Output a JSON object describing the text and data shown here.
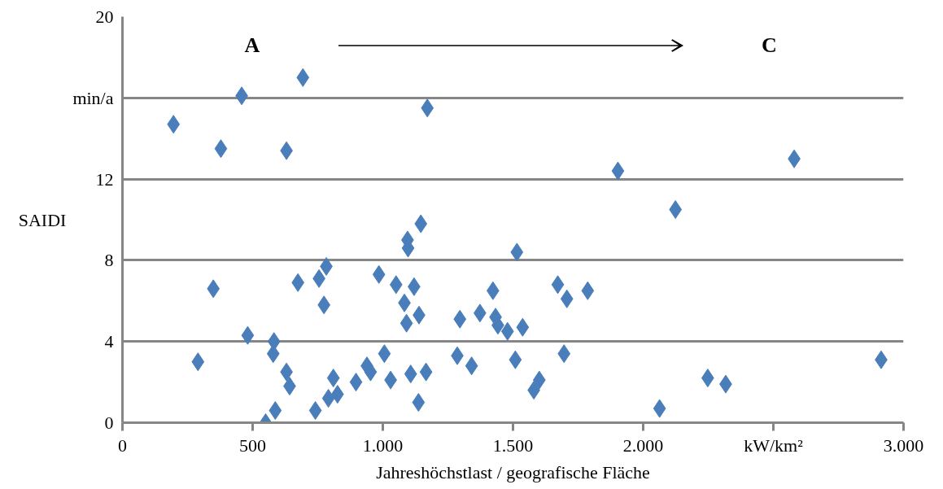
{
  "chart_data": {
    "type": "scatter",
    "xlabel": "Jahreshöchstlast / geografische Fläche",
    "ylabel": "SAIDI",
    "marker": "diamond",
    "grid": "y",
    "annotations": [
      "A",
      "C"
    ],
    "xlim": [
      0,
      3000
    ],
    "ylim": [
      0,
      20
    ],
    "xticks": [
      0,
      500,
      {
        "value": 1000,
        "label": "1.000"
      },
      {
        "value": 1500,
        "label": "1.500"
      },
      {
        "value": 2000,
        "label": "2.000"
      },
      {
        "value": 2500,
        "label": "kW/km²"
      },
      {
        "value": 3000,
        "label": "3.000"
      }
    ],
    "yticks": [
      0,
      4,
      8,
      12,
      {
        "value": 16,
        "label": "min/a"
      },
      20
    ],
    "series": [
      {
        "color": "#4a7ebb",
        "x": [
          196,
          458,
          693,
          378,
          630,
          349,
          674,
          755,
          783,
          774,
          985,
          481,
          582,
          579,
          290,
          630,
          642,
          587,
          550,
          741,
          810,
          791,
          826,
          897,
          939,
          953,
          1006,
          1171,
          1903,
          1146,
          1095,
          1097,
          1515,
          1051,
          1120,
          1083,
          1139,
          1091,
          1296,
          1423,
          1373,
          1433,
          1442,
          1479,
          1537,
          1672,
          1707,
          1787,
          1030,
          1107,
          1166,
          1137,
          1286,
          1341,
          1509,
          1696,
          1601,
          1580,
          2580,
          2124,
          2914,
          2248,
          2317,
          2063
        ],
        "values": [
          14.7,
          16.1,
          17.0,
          13.5,
          13.4,
          6.6,
          6.9,
          7.1,
          7.7,
          5.8,
          7.3,
          4.3,
          4.0,
          3.4,
          3.0,
          2.5,
          1.8,
          0.6,
          0.0,
          0.6,
          2.2,
          1.2,
          1.4,
          2.0,
          2.8,
          2.5,
          3.4,
          15.5,
          12.4,
          9.8,
          9.0,
          8.6,
          8.4,
          6.8,
          6.7,
          5.9,
          5.3,
          4.9,
          5.1,
          6.5,
          5.4,
          5.2,
          4.8,
          4.5,
          4.7,
          6.8,
          6.1,
          6.5,
          2.1,
          2.4,
          2.5,
          1.0,
          3.3,
          2.8,
          3.1,
          3.4,
          2.1,
          1.6,
          13.0,
          10.5,
          3.1,
          2.2,
          1.9,
          0.7
        ]
      }
    ]
  }
}
